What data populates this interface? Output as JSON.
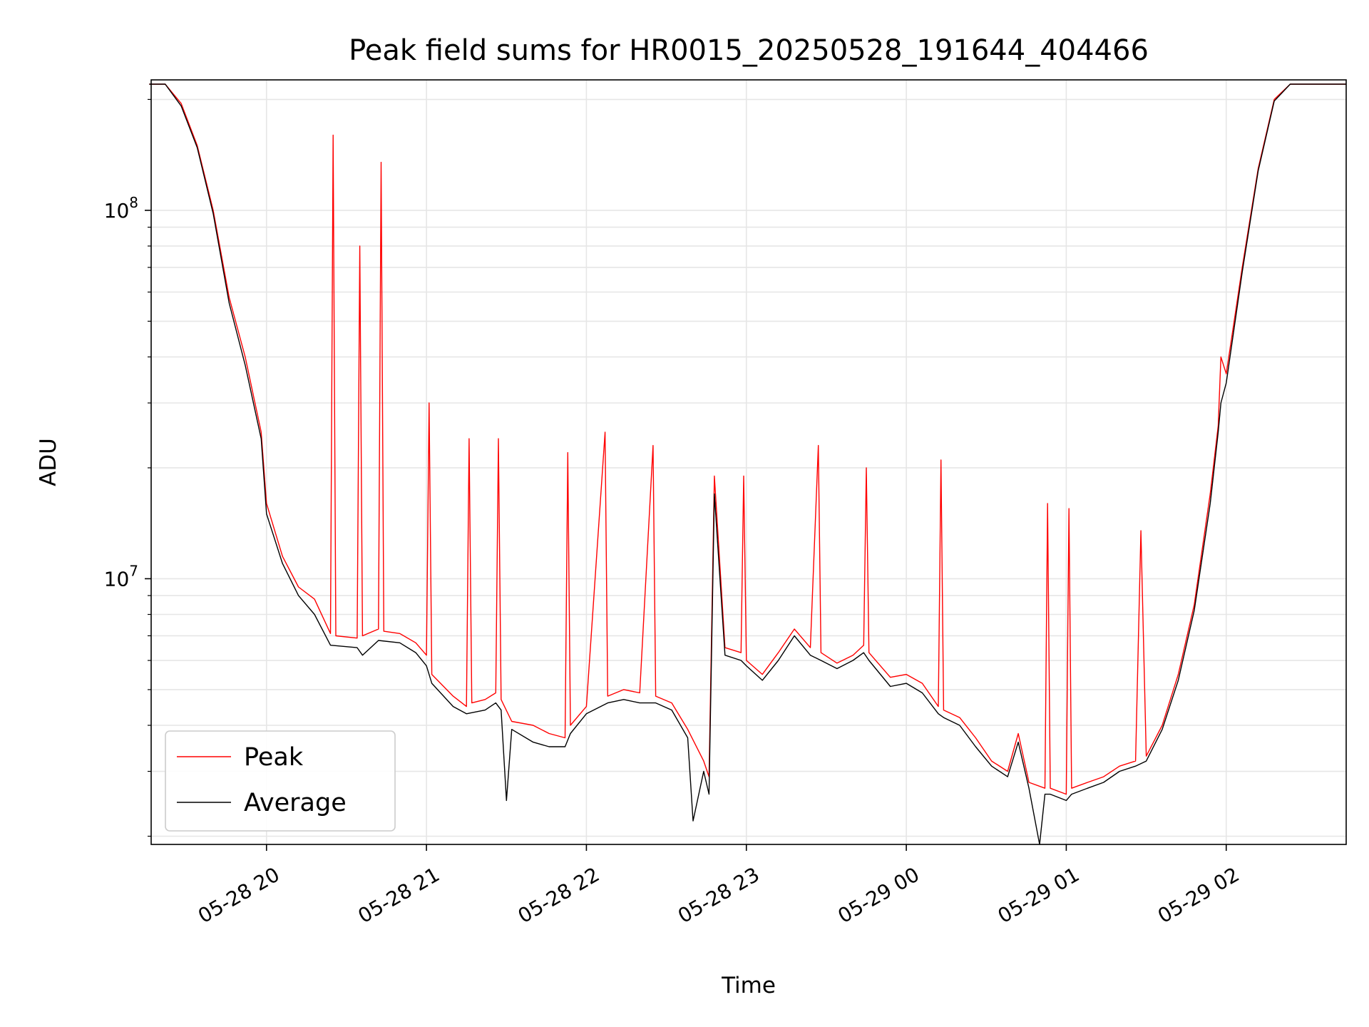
{
  "chart_data": {
    "type": "line",
    "title": "Peak field sums for HR0015_20250528_191644_404466",
    "xlabel": "Time",
    "ylabel": "ADU",
    "yscale": "log",
    "xlim": [
      "2025-05-28 19:16:44",
      "2025-05-29 02:45:00"
    ],
    "ylim": [
      1900000,
      226000000
    ],
    "grid": true,
    "legend_position": "lower-left",
    "x_ticks": [
      {
        "x": "2025-05-28 20:00",
        "label": "05-28 20"
      },
      {
        "x": "2025-05-28 21:00",
        "label": "05-28 21"
      },
      {
        "x": "2025-05-28 22:00",
        "label": "05-28 22"
      },
      {
        "x": "2025-05-28 23:00",
        "label": "05-28 23"
      },
      {
        "x": "2025-05-29 00:00",
        "label": "05-29 00"
      },
      {
        "x": "2025-05-29 01:00",
        "label": "05-29 01"
      },
      {
        "x": "2025-05-29 02:00",
        "label": "05-29 02"
      }
    ],
    "y_ticks": [
      {
        "y": 10000000,
        "base": "10",
        "exp": "7"
      },
      {
        "y": 100000000,
        "base": "10",
        "exp": "8"
      }
    ],
    "series": [
      {
        "name": "Peak",
        "color": "#ff0000",
        "points": [
          [
            "2025-05-28 19:16",
            220000000
          ],
          [
            "2025-05-28 19:22",
            220000000
          ],
          [
            "2025-05-28 19:28",
            195000000
          ],
          [
            "2025-05-28 19:34",
            150000000
          ],
          [
            "2025-05-28 19:40",
            100000000
          ],
          [
            "2025-05-28 19:46",
            58000000
          ],
          [
            "2025-05-28 19:52",
            40000000
          ],
          [
            "2025-05-28 19:58",
            25000000
          ],
          [
            "2025-05-28 20:00",
            16000000
          ],
          [
            "2025-05-28 20:06",
            11500000
          ],
          [
            "2025-05-28 20:12",
            9500000
          ],
          [
            "2025-05-28 20:18",
            8800000
          ],
          [
            "2025-05-28 20:24",
            7100000
          ],
          [
            "2025-05-28 20:25",
            160000000
          ],
          [
            "2025-05-28 20:26",
            7000000
          ],
          [
            "2025-05-28 20:34",
            6900000
          ],
          [
            "2025-05-28 20:35",
            80000000
          ],
          [
            "2025-05-28 20:36",
            7000000
          ],
          [
            "2025-05-28 20:42",
            7300000
          ],
          [
            "2025-05-28 20:43",
            135000000
          ],
          [
            "2025-05-28 20:44",
            7200000
          ],
          [
            "2025-05-28 20:50",
            7100000
          ],
          [
            "2025-05-28 20:56",
            6700000
          ],
          [
            "2025-05-28 21:00",
            6200000
          ],
          [
            "2025-05-28 21:01",
            30000000
          ],
          [
            "2025-05-28 21:02",
            5500000
          ],
          [
            "2025-05-28 21:10",
            4800000
          ],
          [
            "2025-05-28 21:15",
            4500000
          ],
          [
            "2025-05-28 21:16",
            24000000
          ],
          [
            "2025-05-28 21:17",
            4600000
          ],
          [
            "2025-05-28 21:22",
            4700000
          ],
          [
            "2025-05-28 21:26",
            4900000
          ],
          [
            "2025-05-28 21:27",
            24000000
          ],
          [
            "2025-05-28 21:28",
            4700000
          ],
          [
            "2025-05-28 21:32",
            4100000
          ],
          [
            "2025-05-28 21:40",
            4000000
          ],
          [
            "2025-05-28 21:46",
            3800000
          ],
          [
            "2025-05-28 21:52",
            3700000
          ],
          [
            "2025-05-28 21:53",
            22000000
          ],
          [
            "2025-05-28 21:54",
            4000000
          ],
          [
            "2025-05-28 22:00",
            4500000
          ],
          [
            "2025-05-28 22:07",
            25000000
          ],
          [
            "2025-05-28 22:08",
            4800000
          ],
          [
            "2025-05-28 22:14",
            5000000
          ],
          [
            "2025-05-28 22:20",
            4900000
          ],
          [
            "2025-05-28 22:25",
            23000000
          ],
          [
            "2025-05-28 22:26",
            4800000
          ],
          [
            "2025-05-28 22:32",
            4600000
          ],
          [
            "2025-05-28 22:38",
            3900000
          ],
          [
            "2025-05-28 22:44",
            3200000
          ],
          [
            "2025-05-28 22:46",
            2900000
          ],
          [
            "2025-05-28 22:48",
            19000000
          ],
          [
            "2025-05-28 22:52",
            6500000
          ],
          [
            "2025-05-28 22:58",
            6300000
          ],
          [
            "2025-05-28 22:59",
            19000000
          ],
          [
            "2025-05-28 23:00",
            6000000
          ],
          [
            "2025-05-28 23:06",
            5500000
          ],
          [
            "2025-05-28 23:12",
            6300000
          ],
          [
            "2025-05-28 23:18",
            7300000
          ],
          [
            "2025-05-28 23:24",
            6500000
          ],
          [
            "2025-05-28 23:27",
            23000000
          ],
          [
            "2025-05-28 23:28",
            6300000
          ],
          [
            "2025-05-28 23:34",
            5900000
          ],
          [
            "2025-05-28 23:40",
            6200000
          ],
          [
            "2025-05-28 23:44",
            6600000
          ],
          [
            "2025-05-28 23:45",
            20000000
          ],
          [
            "2025-05-28 23:46",
            6300000
          ],
          [
            "2025-05-28 23:54",
            5400000
          ],
          [
            "2025-05-29 00:00",
            5500000
          ],
          [
            "2025-05-29 00:06",
            5200000
          ],
          [
            "2025-05-29 00:12",
            4500000
          ],
          [
            "2025-05-29 00:13",
            21000000
          ],
          [
            "2025-05-29 00:14",
            4400000
          ],
          [
            "2025-05-29 00:20",
            4200000
          ],
          [
            "2025-05-29 00:26",
            3700000
          ],
          [
            "2025-05-29 00:32",
            3200000
          ],
          [
            "2025-05-29 00:38",
            3000000
          ],
          [
            "2025-05-29 00:42",
            3800000
          ],
          [
            "2025-05-29 00:46",
            2800000
          ],
          [
            "2025-05-29 00:52",
            2700000
          ],
          [
            "2025-05-29 00:53",
            16000000
          ],
          [
            "2025-05-29 00:54",
            2700000
          ],
          [
            "2025-05-29 01:00",
            2600000
          ],
          [
            "2025-05-29 01:01",
            15500000
          ],
          [
            "2025-05-29 01:02",
            2700000
          ],
          [
            "2025-05-29 01:08",
            2800000
          ],
          [
            "2025-05-29 01:14",
            2900000
          ],
          [
            "2025-05-29 01:20",
            3100000
          ],
          [
            "2025-05-29 01:26",
            3200000
          ],
          [
            "2025-05-29 01:28",
            13500000
          ],
          [
            "2025-05-29 01:30",
            3300000
          ],
          [
            "2025-05-29 01:36",
            4000000
          ],
          [
            "2025-05-29 01:42",
            5500000
          ],
          [
            "2025-05-29 01:48",
            8500000
          ],
          [
            "2025-05-29 01:54",
            17000000
          ],
          [
            "2025-05-29 01:57",
            26000000
          ],
          [
            "2025-05-29 01:58",
            40000000
          ],
          [
            "2025-05-29 02:00",
            36000000
          ],
          [
            "2025-05-29 02:06",
            70000000
          ],
          [
            "2025-05-29 02:12",
            130000000
          ],
          [
            "2025-05-29 02:18",
            200000000
          ],
          [
            "2025-05-29 02:24",
            220000000
          ],
          [
            "2025-05-29 02:45",
            220000000
          ]
        ]
      },
      {
        "name": "Average",
        "color": "#000000",
        "points": [
          [
            "2025-05-28 19:16",
            220000000
          ],
          [
            "2025-05-28 19:22",
            220000000
          ],
          [
            "2025-05-28 19:28",
            192000000
          ],
          [
            "2025-05-28 19:34",
            148000000
          ],
          [
            "2025-05-28 19:40",
            98000000
          ],
          [
            "2025-05-28 19:46",
            56000000
          ],
          [
            "2025-05-28 19:52",
            38000000
          ],
          [
            "2025-05-28 19:58",
            24000000
          ],
          [
            "2025-05-28 20:00",
            15000000
          ],
          [
            "2025-05-28 20:06",
            11000000
          ],
          [
            "2025-05-28 20:12",
            9000000
          ],
          [
            "2025-05-28 20:18",
            8000000
          ],
          [
            "2025-05-28 20:24",
            6600000
          ],
          [
            "2025-05-28 20:34",
            6500000
          ],
          [
            "2025-05-28 20:36",
            6200000
          ],
          [
            "2025-05-28 20:42",
            6800000
          ],
          [
            "2025-05-28 20:50",
            6700000
          ],
          [
            "2025-05-28 20:56",
            6300000
          ],
          [
            "2025-05-28 21:00",
            5800000
          ],
          [
            "2025-05-28 21:02",
            5200000
          ],
          [
            "2025-05-28 21:10",
            4500000
          ],
          [
            "2025-05-28 21:15",
            4300000
          ],
          [
            "2025-05-28 21:22",
            4400000
          ],
          [
            "2025-05-28 21:26",
            4600000
          ],
          [
            "2025-05-28 21:28",
            4400000
          ],
          [
            "2025-05-28 21:30",
            2500000
          ],
          [
            "2025-05-28 21:32",
            3900000
          ],
          [
            "2025-05-28 21:40",
            3600000
          ],
          [
            "2025-05-28 21:46",
            3500000
          ],
          [
            "2025-05-28 21:52",
            3500000
          ],
          [
            "2025-05-28 21:54",
            3800000
          ],
          [
            "2025-05-28 22:00",
            4300000
          ],
          [
            "2025-05-28 22:08",
            4600000
          ],
          [
            "2025-05-28 22:14",
            4700000
          ],
          [
            "2025-05-28 22:20",
            4600000
          ],
          [
            "2025-05-28 22:26",
            4600000
          ],
          [
            "2025-05-28 22:32",
            4400000
          ],
          [
            "2025-05-28 22:38",
            3700000
          ],
          [
            "2025-05-28 22:40",
            2200000
          ],
          [
            "2025-05-28 22:44",
            3000000
          ],
          [
            "2025-05-28 22:46",
            2600000
          ],
          [
            "2025-05-28 22:48",
            17000000
          ],
          [
            "2025-05-28 22:52",
            6200000
          ],
          [
            "2025-05-28 22:58",
            6000000
          ],
          [
            "2025-05-28 23:00",
            5800000
          ],
          [
            "2025-05-28 23:06",
            5300000
          ],
          [
            "2025-05-28 23:12",
            6000000
          ],
          [
            "2025-05-28 23:18",
            7000000
          ],
          [
            "2025-05-28 23:24",
            6200000
          ],
          [
            "2025-05-28 23:28",
            6000000
          ],
          [
            "2025-05-28 23:34",
            5700000
          ],
          [
            "2025-05-28 23:40",
            6000000
          ],
          [
            "2025-05-28 23:44",
            6300000
          ],
          [
            "2025-05-28 23:46",
            6000000
          ],
          [
            "2025-05-28 23:54",
            5100000
          ],
          [
            "2025-05-29 00:00",
            5200000
          ],
          [
            "2025-05-29 00:06",
            4900000
          ],
          [
            "2025-05-29 00:12",
            4300000
          ],
          [
            "2025-05-29 00:14",
            4200000
          ],
          [
            "2025-05-29 00:20",
            4000000
          ],
          [
            "2025-05-29 00:26",
            3500000
          ],
          [
            "2025-05-29 00:32",
            3100000
          ],
          [
            "2025-05-29 00:38",
            2900000
          ],
          [
            "2025-05-29 00:42",
            3600000
          ],
          [
            "2025-05-29 00:46",
            2700000
          ],
          [
            "2025-05-29 00:50",
            1900000
          ],
          [
            "2025-05-29 00:52",
            2600000
          ],
          [
            "2025-05-29 00:54",
            2600000
          ],
          [
            "2025-05-29 01:00",
            2500000
          ],
          [
            "2025-05-29 01:02",
            2600000
          ],
          [
            "2025-05-29 01:08",
            2700000
          ],
          [
            "2025-05-29 01:14",
            2800000
          ],
          [
            "2025-05-29 01:20",
            3000000
          ],
          [
            "2025-05-29 01:26",
            3100000
          ],
          [
            "2025-05-29 01:30",
            3200000
          ],
          [
            "2025-05-29 01:36",
            3900000
          ],
          [
            "2025-05-29 01:42",
            5300000
          ],
          [
            "2025-05-29 01:48",
            8200000
          ],
          [
            "2025-05-29 01:54",
            16000000
          ],
          [
            "2025-05-29 01:57",
            25000000
          ],
          [
            "2025-05-29 01:58",
            30000000
          ],
          [
            "2025-05-29 02:00",
            34000000
          ],
          [
            "2025-05-29 02:06",
            68000000
          ],
          [
            "2025-05-29 02:12",
            128000000
          ],
          [
            "2025-05-29 02:18",
            198000000
          ],
          [
            "2025-05-29 02:24",
            220000000
          ],
          [
            "2025-05-29 02:45",
            220000000
          ]
        ]
      }
    ]
  }
}
